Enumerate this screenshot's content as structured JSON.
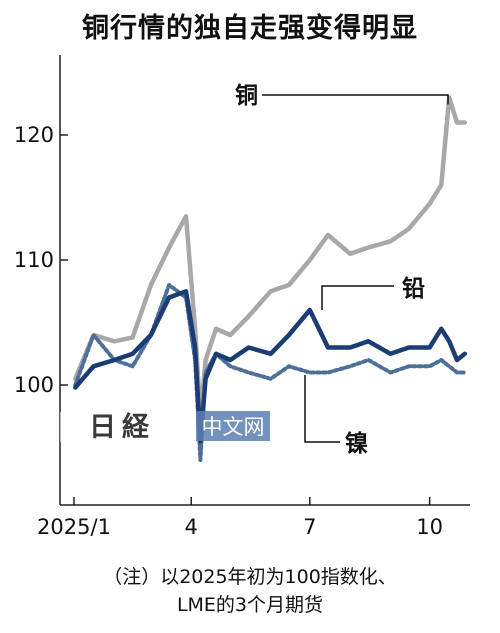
{
  "title": "铜行情的独自走强变得明显",
  "note_line1": "（注）以2025年初为100指数化、",
  "note_line2": "LME的3个月期货",
  "watermark": {
    "logo_text": "日経",
    "site_text": "中文网"
  },
  "colors": {
    "copper": "#a8a8a8",
    "lead": "#1b3d73",
    "nickel": "#4f6f99"
  },
  "chart_data": {
    "type": "line",
    "title": "铜行情的独自走强变得明显",
    "xlabel": "",
    "ylabel": "",
    "x_ticks": [
      "2025/1",
      "4",
      "7",
      "10"
    ],
    "y_ticks": [
      100,
      110,
      120
    ],
    "ylim": [
      92,
      127
    ],
    "grid": false,
    "legend": "direct labels on lines",
    "x": [
      "2025-01-02",
      "2025-01-16",
      "2025-02-01",
      "2025-02-15",
      "2025-03-01",
      "2025-03-15",
      "2025-03-28",
      "2025-04-04",
      "2025-04-08",
      "2025-04-12",
      "2025-04-20",
      "2025-05-01",
      "2025-05-15",
      "2025-06-01",
      "2025-06-15",
      "2025-07-01",
      "2025-07-15",
      "2025-08-01",
      "2025-08-15",
      "2025-09-01",
      "2025-09-15",
      "2025-10-01",
      "2025-10-10",
      "2025-10-16",
      "2025-10-22",
      "2025-10-28"
    ],
    "series": [
      {
        "name": "铜",
        "style": "solid",
        "values": [
          100.5,
          104.0,
          103.5,
          103.8,
          108.0,
          111.0,
          113.5,
          104.5,
          97.5,
          102.0,
          104.5,
          104.0,
          105.5,
          107.5,
          108.0,
          110.0,
          112.0,
          110.5,
          111.0,
          111.5,
          112.5,
          114.5,
          116.0,
          123.0,
          121.0,
          121.0
        ]
      },
      {
        "name": "铅",
        "style": "solid",
        "values": [
          99.8,
          101.5,
          102.0,
          102.5,
          104.0,
          107.0,
          107.5,
          103.0,
          95.5,
          100.5,
          102.5,
          102.0,
          103.0,
          102.5,
          104.0,
          106.0,
          103.0,
          103.0,
          103.5,
          102.5,
          103.0,
          103.0,
          104.5,
          103.5,
          102.0,
          102.5
        ]
      },
      {
        "name": "镍",
        "style": "dotted",
        "values": [
          100.0,
          104.0,
          102.0,
          101.5,
          104.0,
          108.0,
          107.0,
          102.0,
          94.0,
          101.0,
          102.5,
          101.5,
          101.0,
          100.5,
          101.5,
          101.0,
          101.0,
          101.5,
          102.0,
          101.0,
          101.5,
          101.5,
          102.0,
          101.5,
          101.0,
          101.0
        ]
      }
    ]
  }
}
